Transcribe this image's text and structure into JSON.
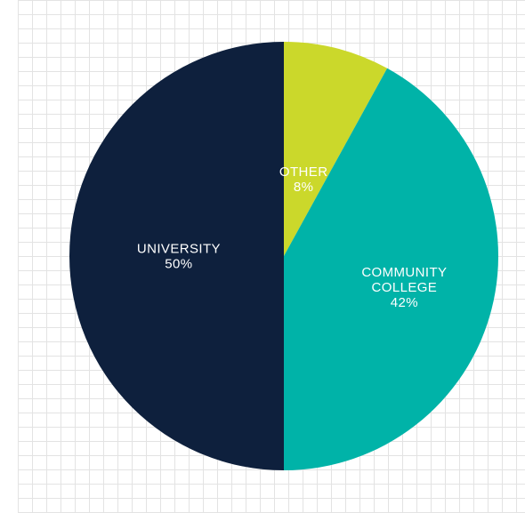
{
  "chart_data": {
    "type": "pie",
    "slices": [
      {
        "label": [
          "OTHER"
        ],
        "value": 8,
        "value_label": "8%",
        "color": "#cbd82b"
      },
      {
        "label": [
          "COMMUNITY",
          "COLLEGE"
        ],
        "value": 42,
        "value_label": "42%",
        "color": "#00b3a8"
      },
      {
        "label": [
          "UNIVERSITY"
        ],
        "value": 50,
        "value_label": "50%",
        "color": "#0e203d"
      }
    ],
    "start": "12 o'clock",
    "direction": "clockwise",
    "grid": true
  }
}
